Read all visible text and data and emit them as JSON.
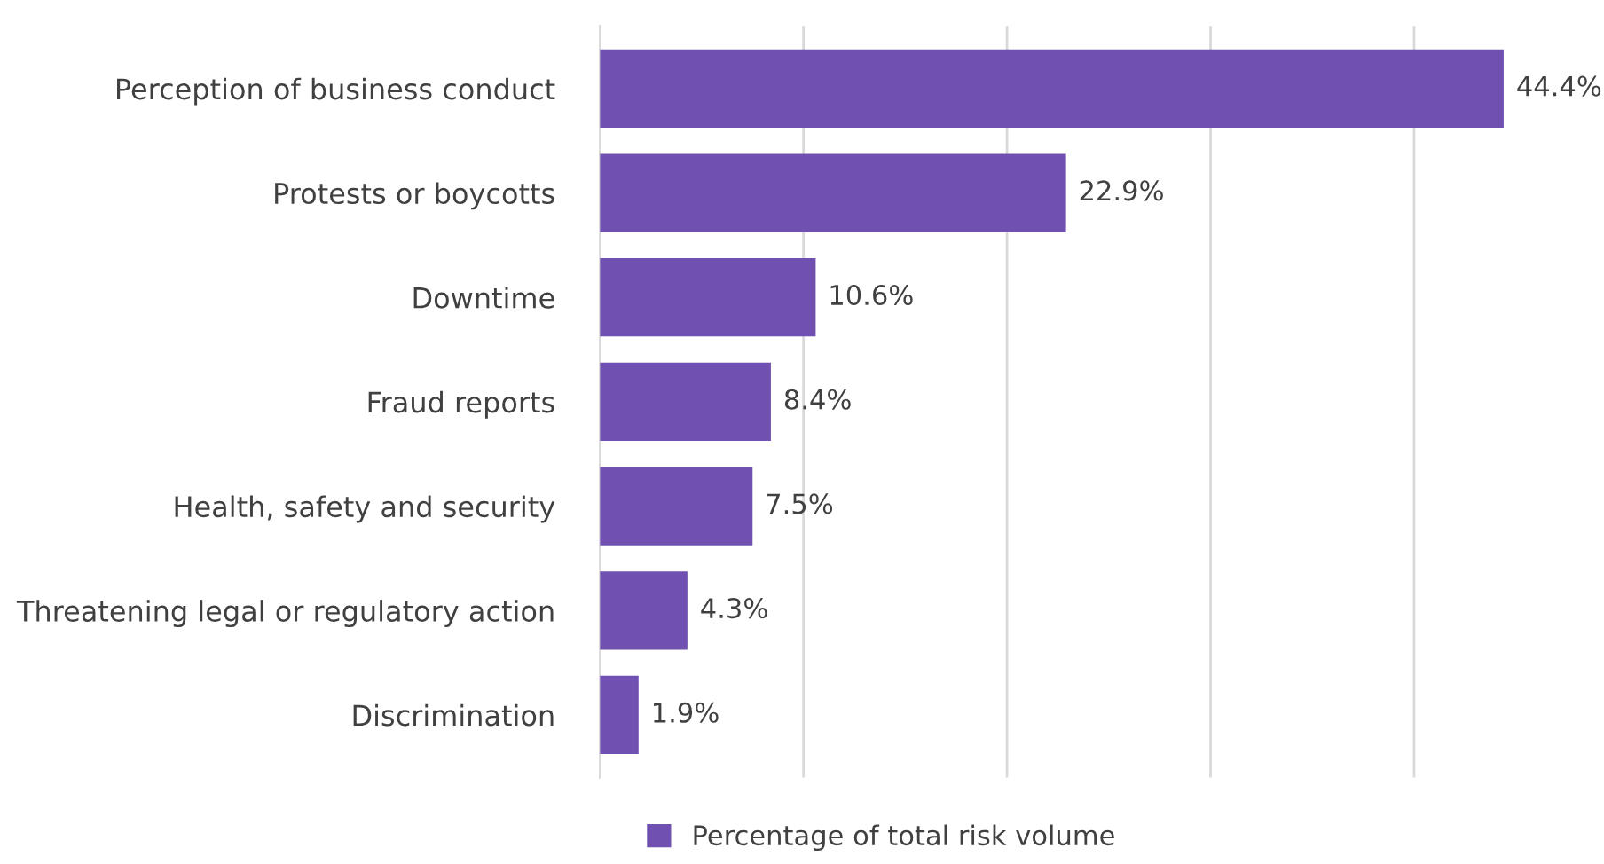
{
  "chart_data": {
    "type": "bar",
    "orientation": "horizontal",
    "categories": [
      "Perception of business conduct",
      "Protests or boycotts",
      "Downtime",
      "Fraud reports",
      "Health, safety and security",
      "Threatening legal or regulatory action",
      "Discrimination"
    ],
    "series": [
      {
        "name": "Percentage of total risk volume",
        "color": "#7050b0",
        "values": [
          44.4,
          22.9,
          10.6,
          8.4,
          7.5,
          4.3,
          1.9
        ],
        "value_labels": [
          "44.4%",
          "22.9%",
          "10.6%",
          "8.4%",
          "7.5%",
          "4.3%",
          "1.9%"
        ]
      }
    ],
    "tick_labels": "y",
    "grid": "x",
    "legend": "bottom"
  }
}
